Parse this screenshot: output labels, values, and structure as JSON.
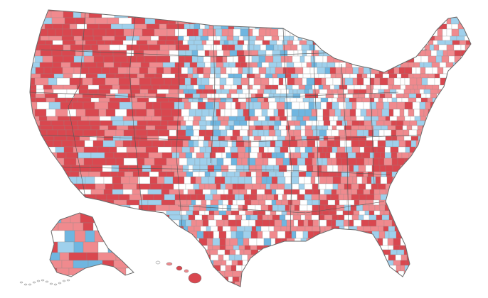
{
  "map": {
    "colors": {
      "dark_red": "#d9474f",
      "light_red": "#f08a8e",
      "light_blue": "#9fd0ec",
      "blue": "#6fb6e0",
      "white": "#ffffff",
      "border": "#8a8a8a"
    },
    "regions": [
      {
        "name": "contiguous-us"
      },
      {
        "name": "alaska"
      },
      {
        "name": "hawaii"
      }
    ]
  }
}
